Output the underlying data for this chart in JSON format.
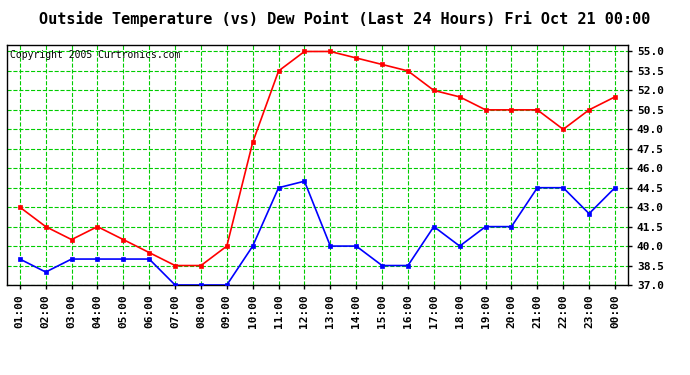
{
  "title": "Outside Temperature (vs) Dew Point (Last 24 Hours) Fri Oct 21 00:00",
  "copyright": "Copyright 2005 Curtronics.com",
  "x_labels": [
    "01:00",
    "02:00",
    "03:00",
    "04:00",
    "05:00",
    "06:00",
    "07:00",
    "08:00",
    "09:00",
    "10:00",
    "11:00",
    "12:00",
    "13:00",
    "14:00",
    "15:00",
    "16:00",
    "17:00",
    "18:00",
    "19:00",
    "20:00",
    "21:00",
    "22:00",
    "23:00",
    "00:00"
  ],
  "red_data": [
    43.0,
    41.5,
    40.5,
    41.5,
    40.5,
    39.5,
    38.5,
    38.5,
    40.0,
    48.0,
    53.5,
    55.0,
    55.0,
    54.5,
    54.0,
    53.5,
    52.0,
    51.5,
    50.5,
    50.5,
    50.5,
    49.0,
    50.5,
    51.5
  ],
  "blue_data": [
    39.0,
    38.0,
    39.0,
    39.0,
    39.0,
    39.0,
    37.0,
    37.0,
    37.0,
    40.0,
    44.5,
    45.0,
    40.0,
    40.0,
    38.5,
    38.5,
    41.5,
    40.0,
    41.5,
    41.5,
    44.5,
    44.5,
    42.5,
    44.5
  ],
  "red_color": "#ff0000",
  "blue_color": "#0000ff",
  "bg_color": "#ffffff",
  "plot_bg_color": "#ffffff",
  "grid_color": "#00cc00",
  "ylim": [
    37.0,
    55.5
  ],
  "yticks": [
    37.0,
    38.5,
    40.0,
    41.5,
    43.0,
    44.5,
    46.0,
    47.5,
    49.0,
    50.5,
    52.0,
    53.5,
    55.0
  ],
  "title_fontsize": 11,
  "copyright_fontsize": 7,
  "tick_fontsize": 8,
  "marker": "s",
  "marker_size": 3,
  "line_width": 1.2
}
